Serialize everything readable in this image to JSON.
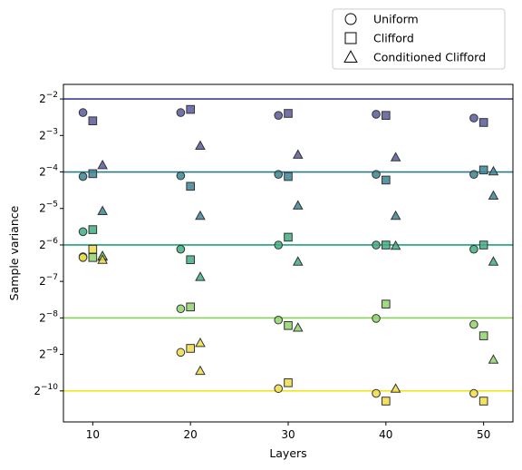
{
  "chart_data": {
    "type": "scatter",
    "xlabel": "Layers",
    "ylabel": "Sample variance",
    "xlim": [
      7,
      53
    ],
    "ylim_log2": [
      -10.85,
      -1.6
    ],
    "y_scale": "log2",
    "x_ticks": [
      10,
      20,
      30,
      40,
      50
    ],
    "y_ticks": [
      {
        "base": "2",
        "exp": "−2",
        "value": 0.25
      },
      {
        "base": "2",
        "exp": "−3",
        "value": 0.125
      },
      {
        "base": "2",
        "exp": "−4",
        "value": 0.0625
      },
      {
        "base": "2",
        "exp": "−5",
        "value": 0.03125
      },
      {
        "base": "2",
        "exp": "−6",
        "value": 0.015625
      },
      {
        "base": "2",
        "exp": "−7",
        "value": 0.0078125
      },
      {
        "base": "2",
        "exp": "−8",
        "value": 0.00390625
      },
      {
        "base": "2",
        "exp": "−9",
        "value": 0.001953125
      },
      {
        "base": "2",
        "exp": "−10",
        "value": 0.0009765625
      }
    ],
    "grid": false,
    "legend_position": "above-top-right",
    "legend": [
      {
        "label": "Uniform",
        "marker": "circle"
      },
      {
        "label": "Clifford",
        "marker": "square"
      },
      {
        "label": "Conditioned Clifford",
        "marker": "triangle"
      }
    ],
    "reference_lines": [
      {
        "value": 0.25,
        "color": "#3b3f99"
      },
      {
        "value": 0.0625,
        "color": "#2a7b8e"
      },
      {
        "value": 0.015625,
        "color": "#1fa27a"
      },
      {
        "value": 0.00390625,
        "color": "#7ed34e"
      },
      {
        "value": 0.0009765625,
        "color": "#f2e51d"
      }
    ],
    "groups": [
      {
        "color": "#5b5b9c",
        "points": [
          {
            "marker": "circle",
            "x": 9,
            "y": 0.193
          },
          {
            "marker": "circle",
            "x": 19,
            "y": 0.193
          },
          {
            "marker": "circle",
            "x": 29,
            "y": 0.183
          },
          {
            "marker": "circle",
            "x": 39,
            "y": 0.187
          },
          {
            "marker": "circle",
            "x": 49,
            "y": 0.174
          },
          {
            "marker": "square",
            "x": 10,
            "y": 0.165
          },
          {
            "marker": "square",
            "x": 20,
            "y": 0.205
          },
          {
            "marker": "square",
            "x": 30,
            "y": 0.19
          },
          {
            "marker": "square",
            "x": 40,
            "y": 0.183
          },
          {
            "marker": "square",
            "x": 50,
            "y": 0.16
          },
          {
            "marker": "triangle",
            "x": 11,
            "y": 0.0713
          },
          {
            "marker": "triangle",
            "x": 21,
            "y": 0.103
          },
          {
            "marker": "triangle",
            "x": 31,
            "y": 0.0869
          },
          {
            "marker": "triangle",
            "x": 41,
            "y": 0.0826
          }
        ]
      },
      {
        "color": "#3d8594",
        "points": [
          {
            "marker": "circle",
            "x": 9,
            "y": 0.0573
          },
          {
            "marker": "circle",
            "x": 19,
            "y": 0.0581
          },
          {
            "marker": "circle",
            "x": 29,
            "y": 0.0597
          },
          {
            "marker": "circle",
            "x": 39,
            "y": 0.0597
          },
          {
            "marker": "circle",
            "x": 49,
            "y": 0.0597
          },
          {
            "marker": "square",
            "x": 10,
            "y": 0.0605
          },
          {
            "marker": "square",
            "x": 20,
            "y": 0.0476
          },
          {
            "marker": "square",
            "x": 30,
            "y": 0.0573
          },
          {
            "marker": "square",
            "x": 40,
            "y": 0.0536
          },
          {
            "marker": "square",
            "x": 50,
            "y": 0.0649
          },
          {
            "marker": "triangle",
            "x": 11,
            "y": 0.0298
          },
          {
            "marker": "triangle",
            "x": 21,
            "y": 0.0272
          },
          {
            "marker": "triangle",
            "x": 31,
            "y": 0.0331
          },
          {
            "marker": "triangle",
            "x": 41,
            "y": 0.0272
          },
          {
            "marker": "triangle",
            "x": 51,
            "y": 0.0633
          },
          {
            "marker": "triangle",
            "x": 51,
            "y": 0.0399
          }
        ]
      },
      {
        "color": "#3fae82",
        "points": [
          {
            "marker": "circle",
            "x": 9,
            "y": 0.0201
          },
          {
            "marker": "circle",
            "x": 19,
            "y": 0.0144
          },
          {
            "marker": "circle",
            "x": 29,
            "y": 0.0156
          },
          {
            "marker": "circle",
            "x": 39,
            "y": 0.0156
          },
          {
            "marker": "circle",
            "x": 49,
            "y": 0.0144
          },
          {
            "marker": "square",
            "x": 10,
            "y": 0.0209
          },
          {
            "marker": "square",
            "x": 20,
            "y": 0.0118
          },
          {
            "marker": "square",
            "x": 30,
            "y": 0.0181
          },
          {
            "marker": "square",
            "x": 40,
            "y": 0.0156
          },
          {
            "marker": "square",
            "x": 50,
            "y": 0.0156
          },
          {
            "marker": "triangle",
            "x": 11,
            "y": 0.0125
          },
          {
            "marker": "triangle",
            "x": 21,
            "y": 0.00852
          },
          {
            "marker": "triangle",
            "x": 31,
            "y": 0.0114
          },
          {
            "marker": "triangle",
            "x": 41,
            "y": 0.0154
          },
          {
            "marker": "triangle",
            "x": 51,
            "y": 0.0114
          }
        ]
      },
      {
        "color": "#8fd36c",
        "points": [
          {
            "marker": "circle",
            "x": 9,
            "y": 0.0125
          },
          {
            "marker": "circle",
            "x": 19,
            "y": 0.00465
          },
          {
            "marker": "circle",
            "x": 29,
            "y": 0.00375
          },
          {
            "marker": "circle",
            "x": 39,
            "y": 0.00387
          },
          {
            "marker": "circle",
            "x": 49,
            "y": 0.00345
          },
          {
            "marker": "square",
            "x": 10,
            "y": 0.0123
          },
          {
            "marker": "square",
            "x": 20,
            "y": 0.00481
          },
          {
            "marker": "square",
            "x": 30,
            "y": 0.00338
          },
          {
            "marker": "square",
            "x": 40,
            "y": 0.00508
          },
          {
            "marker": "square",
            "x": 50,
            "y": 0.00278
          },
          {
            "marker": "triangle",
            "x": 11,
            "y": 0.0127
          },
          {
            "marker": "triangle",
            "x": 31,
            "y": 0.00325
          },
          {
            "marker": "triangle",
            "x": 51,
            "y": 0.00177
          }
        ]
      },
      {
        "color": "#f0dc4a",
        "points": [
          {
            "marker": "circle",
            "x": 9,
            "y": 0.0123
          },
          {
            "marker": "circle",
            "x": 19,
            "y": 0.00203
          },
          {
            "marker": "circle",
            "x": 29,
            "y": 0.00102
          },
          {
            "marker": "circle",
            "x": 39,
            "y": 0.000931
          },
          {
            "marker": "circle",
            "x": 49,
            "y": 0.000931
          },
          {
            "marker": "square",
            "x": 10,
            "y": 0.0144
          },
          {
            "marker": "square",
            "x": 20,
            "y": 0.00219
          },
          {
            "marker": "square",
            "x": 30,
            "y": 0.00114
          },
          {
            "marker": "square",
            "x": 40,
            "y": 0.000805
          },
          {
            "marker": "square",
            "x": 50,
            "y": 0.000805
          },
          {
            "marker": "triangle",
            "x": 11,
            "y": 0.0118
          },
          {
            "marker": "triangle",
            "x": 21,
            "y": 0.00143
          },
          {
            "marker": "triangle",
            "x": 41,
            "y": 0.00102
          },
          {
            "marker": "triangle",
            "x": 21,
            "y": 0.00243
          }
        ]
      }
    ]
  }
}
